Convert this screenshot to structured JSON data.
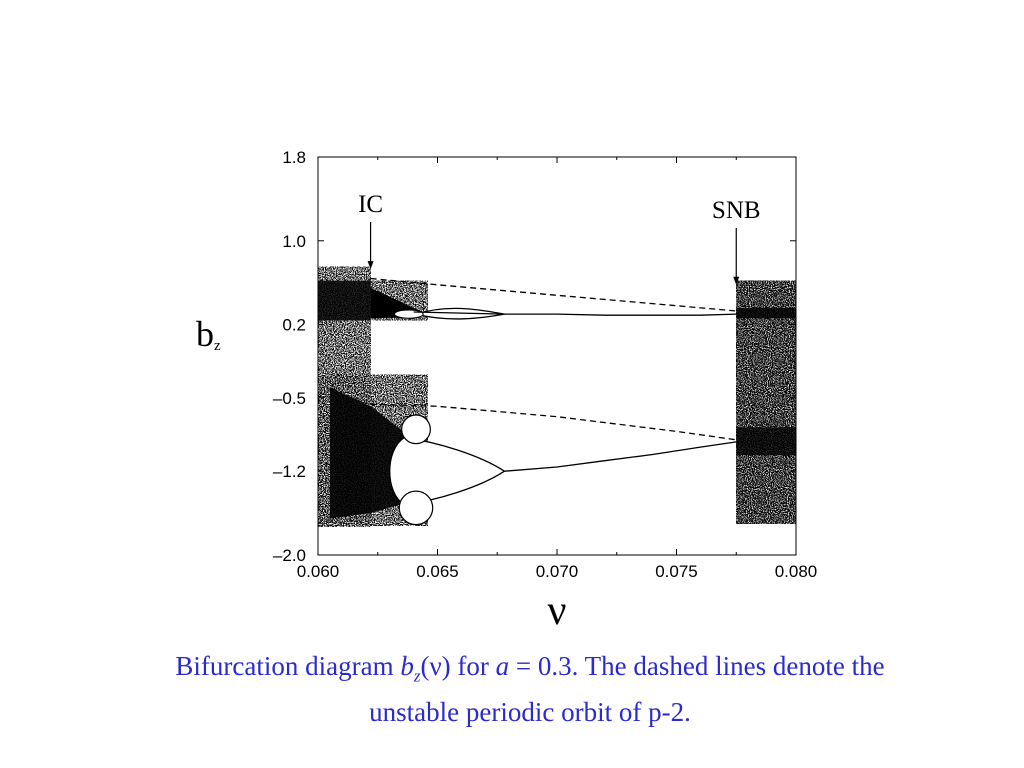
{
  "chart_data": {
    "type": "scatter",
    "title": "",
    "xlabel": "ν",
    "ylabel": {
      "base": "b",
      "sub": "z"
    },
    "xlim": [
      0.06,
      0.08
    ],
    "ylim": [
      -2.0,
      1.8
    ],
    "xticks": [
      "0.060",
      "0.065",
      "0.070",
      "0.075",
      "0.080"
    ],
    "yticks": [
      {
        "value": 1.8,
        "label": "1.8"
      },
      {
        "value": 1.0,
        "label": "1.0"
      },
      {
        "value": 0.2,
        "label": "0.2"
      },
      {
        "value": -0.5,
        "label": "–0.5"
      },
      {
        "value": -1.2,
        "label": "–1.2"
      },
      {
        "value": -2.0,
        "label": "–2.0"
      }
    ],
    "grid": false,
    "annotations": [
      {
        "text": "IC",
        "x": 0.0622,
        "arrow_to_y": 0.73
      },
      {
        "text": "SNB",
        "x": 0.0775,
        "arrow_to_y": 0.58
      }
    ],
    "chaotic_regions": [
      {
        "x": [
          0.06,
          0.0622
        ],
        "y_top": 0.75,
        "y_bottom": -1.73
      },
      {
        "x": [
          0.0775,
          0.08
        ],
        "y_top": 0.62,
        "y_bottom": -1.7
      }
    ],
    "stable_orbit_upper": {
      "x": [
        0.064,
        0.066,
        0.0678,
        0.07,
        0.072,
        0.074,
        0.076,
        0.0775
      ],
      "y": [
        0.32,
        0.31,
        0.3,
        0.3,
        0.29,
        0.29,
        0.29,
        0.3
      ]
    },
    "stable_orbit_lower": {
      "x": [
        0.0678,
        0.07,
        0.072,
        0.074,
        0.076,
        0.0775
      ],
      "y": [
        -1.2,
        -1.16,
        -1.1,
        -1.04,
        -0.97,
        -0.92
      ]
    },
    "unstable_orbit_upper": {
      "style": "dashed",
      "x": [
        0.0622,
        0.065,
        0.07,
        0.075,
        0.0775
      ],
      "y": [
        0.64,
        0.58,
        0.48,
        0.38,
        0.33
      ]
    },
    "unstable_orbit_lower": {
      "style": "dashed",
      "x": [
        0.0622,
        0.065,
        0.07,
        0.075,
        0.0775
      ],
      "y": [
        -0.56,
        -0.58,
        -0.68,
        -0.82,
        -0.9
      ]
    }
  },
  "caption": {
    "part1": "Bifurcation diagram ",
    "var": "b",
    "sub": "z",
    "part2": "(ν) for ",
    "a": "a",
    "part3": " = 0.3. The dashed lines denote the unstable periodic orbit of p-2."
  },
  "colors": {
    "caption": "#2a2ad0",
    "ink": "#000000"
  }
}
